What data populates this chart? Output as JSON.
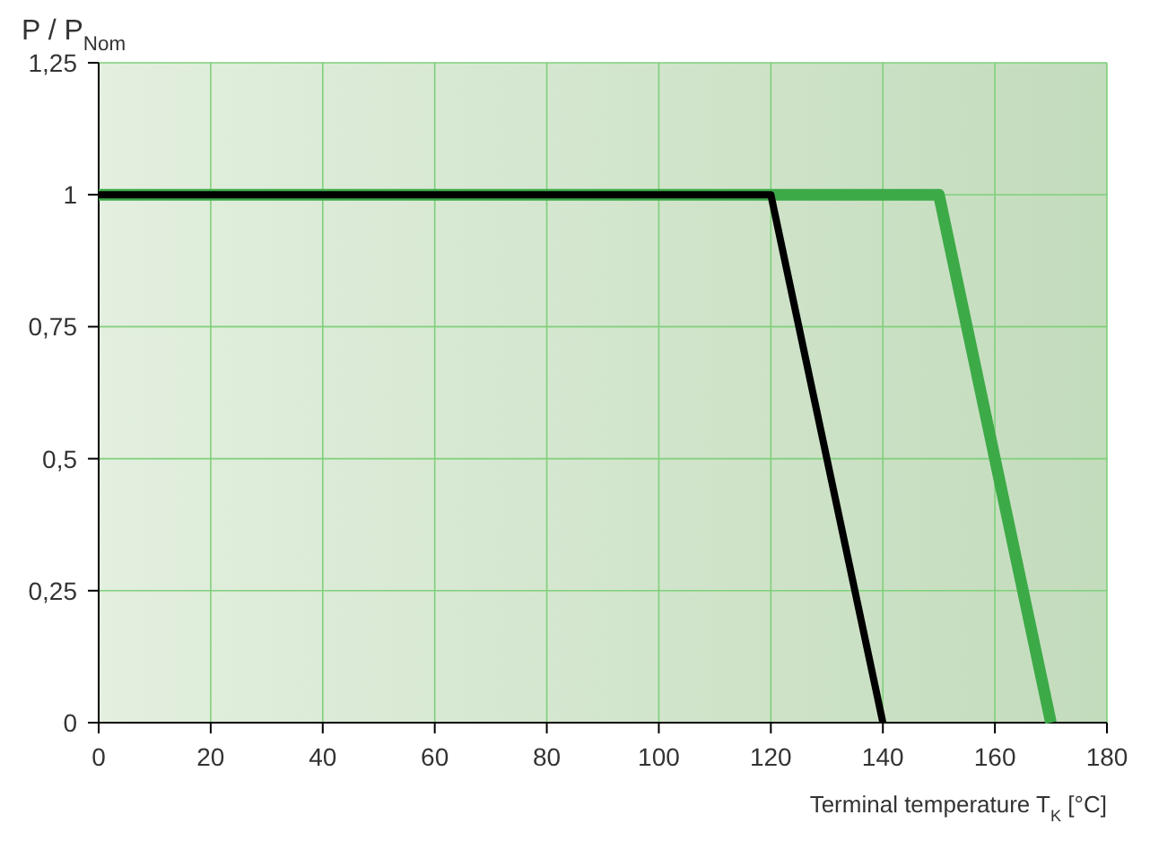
{
  "chart_data": {
    "type": "line",
    "ylabel": "P / P$_{Nom}$",
    "xlabel": "Terminal temperature T$_{K}$ [°C]",
    "xlim": [
      0,
      180
    ],
    "xticks": [
      0,
      20,
      40,
      60,
      80,
      100,
      120,
      140,
      160,
      180
    ],
    "ylim": [
      0,
      1.25
    ],
    "yticks": [
      0,
      {
        "value": 0.25,
        "label": "0,25"
      },
      {
        "value": 0.5,
        "label": "0,5"
      },
      {
        "value": 0.75,
        "label": "0,75"
      },
      1,
      {
        "value": 1.25,
        "label": "1,25"
      }
    ],
    "grid": true,
    "marker": "none",
    "line_style": "solid",
    "series": [
      {
        "color": "#3daa48",
        "x": [
          0,
          150,
          170
        ],
        "values": [
          1,
          1,
          0
        ]
      },
      {
        "color": "#000000",
        "x": [
          0,
          120,
          140
        ],
        "values": [
          1,
          1,
          0
        ]
      }
    ]
  }
}
